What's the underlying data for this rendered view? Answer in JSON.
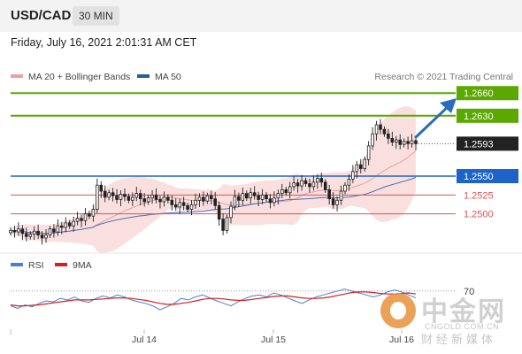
{
  "header": {
    "symbol": "USD/CAD",
    "timeframe": "30 MIN"
  },
  "datetime": "Friday, July 16, 2021 2:01:31 AM CET",
  "legend_top": {
    "ma20": "MA 20 + Bollinger Bands",
    "ma50": "MA 50"
  },
  "credit": "Research © 2021 Trading Central",
  "legend_bottom": {
    "rsi": "RSI",
    "ma9": "9MA"
  },
  "watermark": {
    "title": "中金网",
    "sub1": "CNGOLD.COM.CN",
    "sub2": "财经新媒体"
  },
  "colors": {
    "resistance": "#5aa800",
    "support": "#1e64c8",
    "minor_level": "#d9534f",
    "current": "#222222",
    "ma20": "#e8a0a0",
    "ma50": "#4a6fb5",
    "band_fill": "#f8d4d4",
    "candle": "#222222",
    "rsi": "#4a7fd4",
    "ma9": "#d42020",
    "arrow": "#2a6cb8"
  },
  "chart_data": [
    {
      "type": "candlestick",
      "x_ticks": [
        "Jul 14",
        "Jul 15",
        "Jul 16"
      ],
      "y_range": [
        1.2455,
        1.2672
      ],
      "levels": [
        {
          "value": 1.266,
          "label": "1.2660",
          "kind": "resistance"
        },
        {
          "value": 1.263,
          "label": "1.2630",
          "kind": "resistance"
        },
        {
          "value": 1.2593,
          "label": "1.2593",
          "kind": "current"
        },
        {
          "value": 1.255,
          "label": "1.2550",
          "kind": "support"
        },
        {
          "value": 1.2525,
          "label": "1.2525",
          "kind": "minor"
        },
        {
          "value": 1.25,
          "label": "1.2500",
          "kind": "minor"
        }
      ],
      "close": [
        1.2478,
        1.2476,
        1.248,
        1.2474,
        1.247,
        1.2473,
        1.2477,
        1.2472,
        1.2468,
        1.2472,
        1.248,
        1.2476,
        1.2484,
        1.2482,
        1.2488,
        1.2484,
        1.249,
        1.2494,
        1.2491,
        1.25,
        1.2497,
        1.2506,
        1.2538,
        1.253,
        1.2522,
        1.2528,
        1.2524,
        1.2519,
        1.2526,
        1.2523,
        1.2518,
        1.2522,
        1.2527,
        1.252,
        1.2516,
        1.2521,
        1.2525,
        1.2519,
        1.2516,
        1.2522,
        1.2518,
        1.2512,
        1.2509,
        1.2515,
        1.2511,
        1.2506,
        1.2512,
        1.2518,
        1.2522,
        1.2517,
        1.2524,
        1.252,
        1.2511,
        1.2493,
        1.2478,
        1.2495,
        1.251,
        1.2523,
        1.2518,
        1.2527,
        1.2521,
        1.2528,
        1.2524,
        1.2519,
        1.2525,
        1.252,
        1.2515,
        1.2521,
        1.2527,
        1.2532,
        1.2528,
        1.2536,
        1.2541,
        1.2537,
        1.2544,
        1.254,
        1.2536,
        1.2542,
        1.2547,
        1.2542,
        1.2532,
        1.252,
        1.2512,
        1.2518,
        1.253,
        1.2538,
        1.2546,
        1.2556,
        1.2565,
        1.256,
        1.2572,
        1.259,
        1.2606,
        1.2618,
        1.2612,
        1.2606,
        1.26,
        1.2595,
        1.2598,
        1.2592,
        1.2596,
        1.2593,
        1.2597,
        1.2593
      ],
      "series": [
        {
          "name": "MA 20 + Bollinger Bands"
        },
        {
          "name": "MA 50"
        }
      ]
    },
    {
      "type": "line",
      "ylim": [
        0,
        100
      ],
      "y_ticks": [
        "70"
      ],
      "series": [
        {
          "name": "RSI",
          "values": [
            40,
            35,
            42,
            38,
            45,
            50,
            48,
            55,
            52,
            58,
            50,
            47,
            55,
            60,
            56,
            62,
            58,
            52,
            48,
            45,
            40,
            32,
            38,
            45,
            55,
            52,
            58,
            62,
            56,
            50,
            45,
            40,
            48,
            55,
            60,
            62,
            58,
            66,
            62,
            56,
            50,
            45,
            52,
            58,
            62,
            66,
            70,
            74,
            70,
            66,
            62,
            58,
            62,
            68,
            72,
            68,
            62,
            56
          ]
        },
        {
          "name": "9MA",
          "values": [
            42,
            40,
            40,
            41,
            42,
            44,
            46,
            48,
            50,
            52,
            52,
            52,
            53,
            54,
            55,
            56,
            56,
            55,
            53,
            51,
            48,
            45,
            43,
            43,
            45,
            47,
            50,
            53,
            55,
            55,
            54,
            52,
            51,
            51,
            53,
            55,
            57,
            59,
            60,
            60,
            58,
            56,
            55,
            55,
            56,
            58,
            61,
            64,
            67,
            68,
            68,
            67,
            65,
            64,
            64,
            65,
            66,
            64
          ]
        }
      ]
    }
  ]
}
